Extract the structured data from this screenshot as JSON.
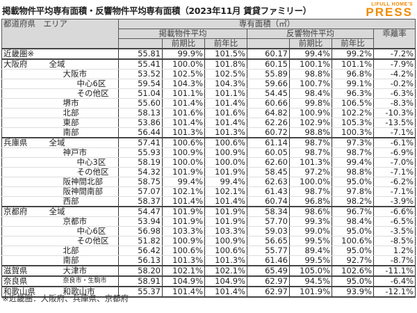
{
  "title": "掲載物件平均専有面積・反響物件平均専有面積（2023年11月 賃貸ファミリー）",
  "logo": {
    "small": "LIFULL HOME'S",
    "big": "PRESS",
    "color": "#f08a00"
  },
  "header": {
    "region": "都道府県　エリア",
    "area_group": "専有面積（㎡）",
    "listed": "掲載物件平均",
    "inquiry": "反響物件平均",
    "gap": "乖離率",
    "qoq": "前期比",
    "yoy": "前年比"
  },
  "rows": [
    {
      "pref": "近畿圏※",
      "area": "",
      "depth": 0,
      "g": 1,
      "v": [
        "55.81",
        "99.9%",
        "101.5%",
        "60.17",
        "99.4%",
        "99.2%",
        "-7.2%"
      ]
    },
    {
      "pref": "大阪府",
      "area": "全域",
      "depth": 1,
      "g": 1,
      "v": [
        "55.41",
        "100.0%",
        "101.8%",
        "60.15",
        "100.1%",
        "101.1%",
        "-7.9%"
      ]
    },
    {
      "pref": "",
      "area": "大阪市",
      "depth": 2,
      "v": [
        "53.52",
        "102.5%",
        "102.5%",
        "55.89",
        "98.8%",
        "96.8%",
        "-4.2%"
      ]
    },
    {
      "pref": "",
      "area": "中心6区",
      "depth": 3,
      "v": [
        "59.54",
        "104.3%",
        "104.3%",
        "59.66",
        "100.7%",
        "99.1%",
        "-0.2%"
      ]
    },
    {
      "pref": "",
      "area": "その他区",
      "depth": 3,
      "v": [
        "51.04",
        "101.1%",
        "101.1%",
        "54.45",
        "98.4%",
        "96.3%",
        "-6.3%"
      ]
    },
    {
      "pref": "",
      "area": "堺市",
      "depth": 2,
      "v": [
        "55.60",
        "101.4%",
        "101.4%",
        "60.66",
        "99.8%",
        "106.5%",
        "-8.3%"
      ]
    },
    {
      "pref": "",
      "area": "北部",
      "depth": 2,
      "v": [
        "58.13",
        "101.6%",
        "101.6%",
        "64.82",
        "100.9%",
        "102.2%",
        "-10.3%"
      ]
    },
    {
      "pref": "",
      "area": "東部",
      "depth": 2,
      "v": [
        "53.86",
        "101.4%",
        "101.4%",
        "62.26",
        "102.9%",
        "105.3%",
        "-13.5%"
      ]
    },
    {
      "pref": "",
      "area": "南部",
      "depth": 2,
      "v": [
        "56.44",
        "101.3%",
        "101.3%",
        "60.72",
        "98.8%",
        "100.3%",
        "-7.1%"
      ]
    },
    {
      "pref": "兵庫県",
      "area": "全域",
      "depth": 1,
      "g": 1,
      "v": [
        "57.41",
        "100.6%",
        "100.6%",
        "61.14",
        "98.7%",
        "97.3%",
        "-6.1%"
      ]
    },
    {
      "pref": "",
      "area": "神戸市",
      "depth": 2,
      "v": [
        "55.93",
        "100.9%",
        "100.9%",
        "60.05",
        "98.7%",
        "98.7%",
        "-6.9%"
      ]
    },
    {
      "pref": "",
      "area": "中心3区",
      "depth": 3,
      "v": [
        "58.19",
        "100.0%",
        "100.0%",
        "62.60",
        "101.3%",
        "99.4%",
        "-7.0%"
      ]
    },
    {
      "pref": "",
      "area": "その他区",
      "depth": 3,
      "v": [
        "54.32",
        "101.9%",
        "101.9%",
        "58.45",
        "97.2%",
        "98.8%",
        "-7.1%"
      ]
    },
    {
      "pref": "",
      "area": "阪神間北部",
      "depth": 2,
      "v": [
        "58.75",
        "99.4%",
        "99.4%",
        "62.63",
        "100.0%",
        "95.0%",
        "-6.2%"
      ]
    },
    {
      "pref": "",
      "area": "阪神間南部",
      "depth": 2,
      "v": [
        "57.07",
        "102.1%",
        "102.1%",
        "61.43",
        "98.7%",
        "97.8%",
        "-7.1%"
      ]
    },
    {
      "pref": "",
      "area": "西部",
      "depth": 2,
      "v": [
        "58.37",
        "101.4%",
        "101.4%",
        "60.74",
        "96.8%",
        "98.2%",
        "-3.9%"
      ]
    },
    {
      "pref": "京都府",
      "area": "全域",
      "depth": 1,
      "g": 1,
      "v": [
        "54.47",
        "101.9%",
        "101.9%",
        "58.34",
        "98.6%",
        "96.7%",
        "-6.6%"
      ]
    },
    {
      "pref": "",
      "area": "京都市",
      "depth": 2,
      "v": [
        "53.94",
        "101.9%",
        "101.9%",
        "57.70",
        "99.3%",
        "98.4%",
        "-6.5%"
      ]
    },
    {
      "pref": "",
      "area": "中心6区",
      "depth": 3,
      "v": [
        "56.98",
        "103.3%",
        "103.3%",
        "59.03",
        "99.0%",
        "95.0%",
        "-3.5%"
      ]
    },
    {
      "pref": "",
      "area": "その他区",
      "depth": 3,
      "v": [
        "51.82",
        "100.9%",
        "100.9%",
        "56.65",
        "99.5%",
        "100.6%",
        "-8.5%"
      ]
    },
    {
      "pref": "",
      "area": "北部",
      "depth": 2,
      "v": [
        "56.42",
        "100.6%",
        "100.6%",
        "55.77",
        "89.4%",
        "95.0%",
        "1.2%"
      ]
    },
    {
      "pref": "",
      "area": "南部",
      "depth": 2,
      "v": [
        "56.13",
        "101.3%",
        "101.3%",
        "61.46",
        "99.5%",
        "92.7%",
        "-8.7%"
      ]
    },
    {
      "pref": "滋賀県",
      "area": "大津市",
      "depth": 2,
      "g": 1,
      "v": [
        "58.20",
        "102.1%",
        "102.1%",
        "65.49",
        "105.0%",
        "102.6%",
        "-11.1%"
      ]
    },
    {
      "pref": "奈良県",
      "area": "奈良市・生駒市",
      "depth": 2,
      "g": 1,
      "small": 1,
      "v": [
        "58.91",
        "104.9%",
        "104.9%",
        "62.97",
        "94.5%",
        "95.0%",
        "-6.4%"
      ]
    },
    {
      "pref": "和歌山県",
      "area": "和歌山市",
      "depth": 2,
      "g": 1,
      "v": [
        "55.37",
        "101.4%",
        "101.4%",
        "62.97",
        "101.9%",
        "93.9%",
        "-12.1%"
      ]
    }
  ],
  "note": "※近畿圏：大阪府、兵庫県、京都府"
}
